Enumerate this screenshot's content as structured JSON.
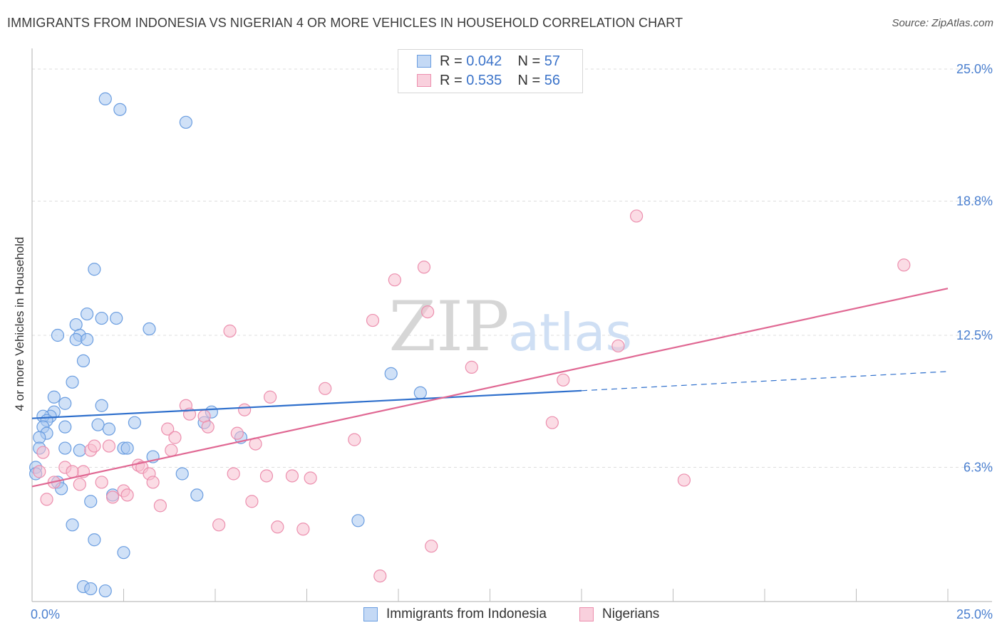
{
  "header": {
    "title": "IMMIGRANTS FROM INDONESIA VS NIGERIAN 4 OR MORE VEHICLES IN HOUSEHOLD CORRELATION CHART",
    "source": "Source: ZipAtlas.com"
  },
  "legend": {
    "series1": {
      "r_label": "R = ",
      "r_value": "0.042",
      "n_label": "N = ",
      "n_value": "57"
    },
    "series2": {
      "r_label": "R = ",
      "r_value": "0.535",
      "n_label": "N = ",
      "n_value": "56"
    }
  },
  "watermark": {
    "zip": "ZIP",
    "atlas": "atlas"
  },
  "colors": {
    "blue_fill": "#a9c8f0",
    "blue_stroke": "#6a9de0",
    "blue_line": "#2e6fcc",
    "pink_fill": "#f7bfd0",
    "pink_stroke": "#ec8fae",
    "pink_line": "#e06893",
    "tick_text": "#4a7fcf",
    "grid": "#dddddd"
  },
  "chart_data": {
    "type": "scatter",
    "title": "IMMIGRANTS FROM INDONESIA VS NIGERIAN 4 OR MORE VEHICLES IN HOUSEHOLD CORRELATION CHART",
    "xlabel": "",
    "ylabel": "4 or more Vehicles in Household",
    "xlim": [
      0,
      25
    ],
    "ylim": [
      0,
      25
    ],
    "x_tick_labels": [
      "0.0%",
      "25.0%"
    ],
    "y_ticks": [
      6.3,
      12.5,
      18.8,
      25.0
    ],
    "y_tick_labels": [
      "6.3%",
      "12.5%",
      "18.8%",
      "25.0%"
    ],
    "grid": true,
    "legend_position": "bottom-center",
    "series": [
      {
        "name": "Immigrants from Indonesia",
        "color": "#a9c8f0",
        "r": 0.042,
        "n": 57,
        "trend": {
          "x": [
            0,
            15
          ],
          "y": [
            8.6,
            9.9
          ],
          "dashed_to": [
            25,
            10.8
          ]
        },
        "points": [
          [
            2.0,
            23.6
          ],
          [
            2.4,
            23.1
          ],
          [
            4.2,
            22.5
          ],
          [
            1.7,
            15.6
          ],
          [
            1.5,
            13.5
          ],
          [
            1.9,
            13.3
          ],
          [
            2.3,
            13.3
          ],
          [
            1.2,
            13.0
          ],
          [
            0.7,
            12.5
          ],
          [
            1.3,
            12.5
          ],
          [
            1.2,
            12.3
          ],
          [
            1.5,
            12.3
          ],
          [
            3.2,
            12.8
          ],
          [
            1.4,
            11.3
          ],
          [
            1.1,
            10.3
          ],
          [
            0.6,
            9.6
          ],
          [
            0.9,
            9.3
          ],
          [
            1.9,
            9.2
          ],
          [
            0.6,
            8.9
          ],
          [
            0.5,
            8.7
          ],
          [
            0.3,
            8.7
          ],
          [
            0.4,
            8.5
          ],
          [
            0.3,
            8.2
          ],
          [
            0.4,
            7.9
          ],
          [
            0.9,
            8.2
          ],
          [
            1.8,
            8.3
          ],
          [
            2.1,
            8.1
          ],
          [
            2.8,
            8.4
          ],
          [
            0.2,
            7.7
          ],
          [
            0.2,
            7.2
          ],
          [
            0.9,
            7.2
          ],
          [
            1.3,
            7.1
          ],
          [
            2.5,
            7.2
          ],
          [
            2.6,
            7.2
          ],
          [
            3.3,
            6.8
          ],
          [
            0.1,
            6.3
          ],
          [
            0.1,
            6.0
          ],
          [
            0.7,
            5.6
          ],
          [
            0.8,
            5.3
          ],
          [
            2.2,
            5.0
          ],
          [
            4.5,
            5.0
          ],
          [
            1.6,
            4.7
          ],
          [
            4.1,
            6.0
          ],
          [
            1.1,
            3.6
          ],
          [
            1.7,
            2.9
          ],
          [
            2.5,
            2.3
          ],
          [
            1.4,
            0.7
          ],
          [
            1.6,
            0.6
          ],
          [
            2.0,
            0.5
          ],
          [
            4.7,
            8.4
          ],
          [
            4.9,
            8.9
          ],
          [
            5.7,
            7.7
          ],
          [
            9.8,
            10.7
          ],
          [
            10.6,
            9.8
          ],
          [
            8.9,
            3.8
          ]
        ]
      },
      {
        "name": "Nigerians",
        "color": "#f7bfd0",
        "r": 0.535,
        "n": 56,
        "trend": {
          "x": [
            0,
            25
          ],
          "y": [
            5.4,
            14.7
          ]
        },
        "points": [
          [
            16.5,
            18.1
          ],
          [
            23.8,
            15.8
          ],
          [
            10.7,
            15.7
          ],
          [
            9.9,
            15.1
          ],
          [
            10.8,
            13.6
          ],
          [
            9.3,
            13.2
          ],
          [
            5.4,
            12.7
          ],
          [
            16.0,
            12.0
          ],
          [
            12.0,
            11.0
          ],
          [
            14.5,
            10.4
          ],
          [
            8.0,
            10.0
          ],
          [
            6.5,
            9.6
          ],
          [
            4.2,
            9.2
          ],
          [
            4.3,
            8.8
          ],
          [
            5.8,
            9.0
          ],
          [
            4.7,
            8.7
          ],
          [
            4.8,
            8.2
          ],
          [
            3.7,
            8.1
          ],
          [
            3.9,
            7.7
          ],
          [
            5.6,
            7.9
          ],
          [
            6.1,
            7.4
          ],
          [
            8.8,
            7.6
          ],
          [
            14.2,
            8.4
          ],
          [
            3.8,
            7.1
          ],
          [
            2.1,
            7.3
          ],
          [
            1.6,
            7.1
          ],
          [
            1.7,
            7.3
          ],
          [
            0.3,
            7.0
          ],
          [
            0.2,
            6.1
          ],
          [
            0.9,
            6.3
          ],
          [
            1.4,
            6.1
          ],
          [
            1.1,
            6.1
          ],
          [
            2.9,
            6.4
          ],
          [
            3.0,
            6.3
          ],
          [
            3.2,
            6.0
          ],
          [
            5.5,
            6.0
          ],
          [
            6.4,
            5.9
          ],
          [
            7.1,
            5.9
          ],
          [
            7.6,
            5.8
          ],
          [
            17.8,
            5.7
          ],
          [
            3.3,
            5.6
          ],
          [
            1.9,
            5.6
          ],
          [
            0.6,
            5.6
          ],
          [
            1.3,
            5.5
          ],
          [
            2.5,
            5.2
          ],
          [
            2.6,
            5.0
          ],
          [
            2.2,
            4.9
          ],
          [
            0.4,
            4.8
          ],
          [
            6.0,
            4.7
          ],
          [
            3.5,
            4.5
          ],
          [
            5.1,
            3.6
          ],
          [
            6.7,
            3.5
          ],
          [
            7.4,
            3.4
          ],
          [
            10.9,
            2.6
          ],
          [
            9.5,
            1.2
          ]
        ]
      }
    ]
  }
}
